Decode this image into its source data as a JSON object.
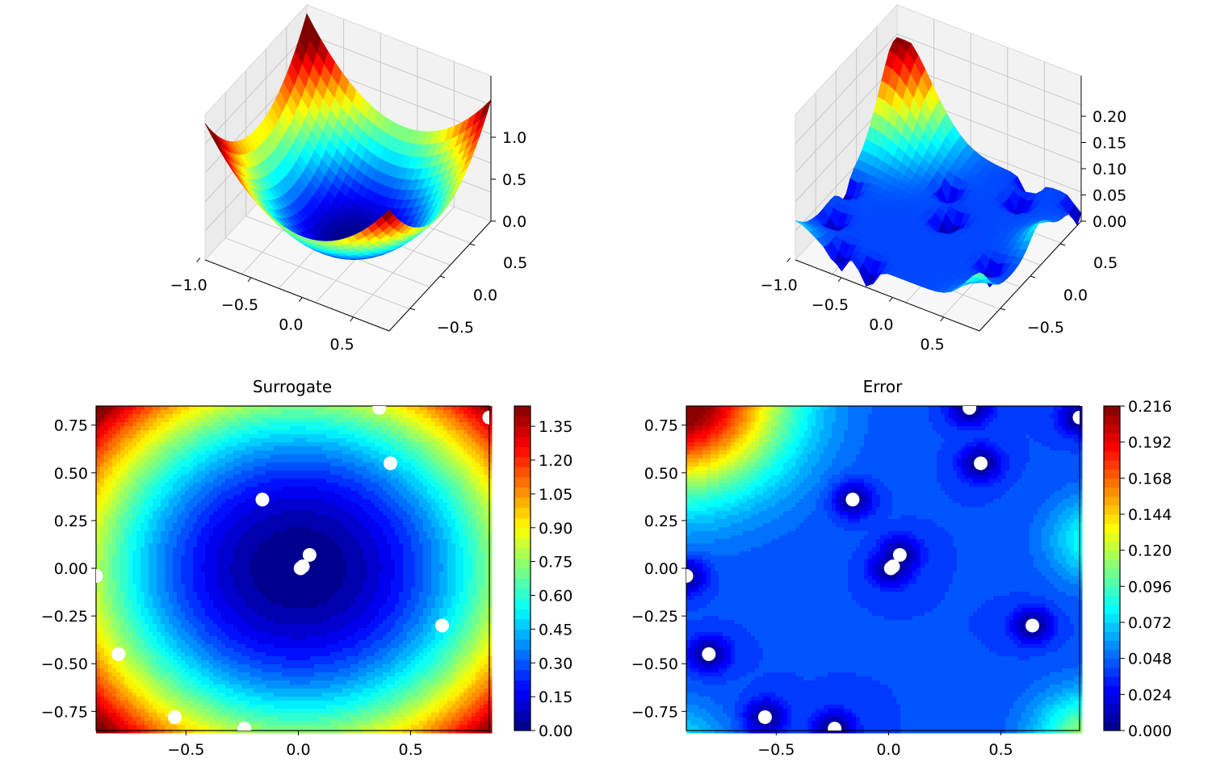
{
  "chart_data": [
    {
      "type": "surface3d",
      "title": "",
      "x_ticks": [
        "−1.0",
        "−0.5",
        "0.0",
        "0.5"
      ],
      "y_ticks": [
        "−0.5",
        "0.0",
        "0.5"
      ],
      "z_ticks": [
        "0.0",
        "0.5",
        "1.0"
      ],
      "xlim": [
        -1.0,
        0.85
      ],
      "ylim": [
        -0.85,
        0.85
      ],
      "zlim": [
        0.0,
        1.35
      ],
      "colormap": "jet",
      "surface": "z = x^2 + y^2 (bowl, max ≈ 1.4 at corners)"
    },
    {
      "type": "surface3d",
      "title": "",
      "x_ticks": [
        "−1.0",
        "−0.5",
        "0.0",
        "0.5"
      ],
      "y_ticks": [
        "−0.5",
        "0.0",
        "0.5"
      ],
      "z_ticks": [
        "0.00",
        "0.05",
        "0.10",
        "0.15",
        "0.20"
      ],
      "xlim": [
        -1.0,
        0.85
      ],
      "ylim": [
        -0.85,
        0.85
      ],
      "zlim": [
        0.0,
        0.216
      ],
      "colormap": "jet",
      "surface": "error surface, peak ≈ 0.21 at far corner"
    },
    {
      "type": "heatmap",
      "title": "Surrogate",
      "xlim": [
        -0.9,
        0.85
      ],
      "ylim": [
        -0.85,
        0.85
      ],
      "x_ticks": [
        "−0.5",
        "0.0",
        "0.5"
      ],
      "y_ticks": [
        "−0.75",
        "−0.50",
        "−0.25",
        "0.00",
        "0.25",
        "0.50",
        "0.75"
      ],
      "colorbar_ticks": [
        "0.00",
        "0.15",
        "0.30",
        "0.45",
        "0.60",
        "0.75",
        "0.90",
        "1.05",
        "1.20",
        "1.35"
      ],
      "colorbar_range": [
        0.0,
        1.44
      ],
      "colormap": "jet",
      "levels": 32,
      "samples": [
        [
          0.36,
          0.84
        ],
        [
          0.85,
          0.79
        ],
        [
          0.41,
          0.55
        ],
        [
          -0.16,
          0.36
        ],
        [
          0.05,
          0.07
        ],
        [
          0.02,
          0.01
        ],
        [
          0.01,
          0.0
        ],
        [
          -0.9,
          -0.04
        ],
        [
          0.64,
          -0.3
        ],
        [
          -0.8,
          -0.45
        ],
        [
          -0.55,
          -0.78
        ],
        [
          -0.24,
          -0.84
        ]
      ]
    },
    {
      "type": "heatmap",
      "title": "Error",
      "xlim": [
        -0.9,
        0.85
      ],
      "ylim": [
        -0.85,
        0.85
      ],
      "x_ticks": [
        "−0.5",
        "0.0",
        "0.5"
      ],
      "y_ticks": [
        "−0.75",
        "−0.50",
        "−0.25",
        "0.00",
        "0.25",
        "0.50",
        "0.75"
      ],
      "colorbar_ticks": [
        "0.000",
        "0.024",
        "0.048",
        "0.072",
        "0.096",
        "0.120",
        "0.144",
        "0.168",
        "0.192",
        "0.216"
      ],
      "colorbar_range": [
        0.0,
        0.216
      ],
      "colormap": "jet",
      "levels": 36,
      "samples": [
        [
          0.36,
          0.84
        ],
        [
          0.85,
          0.79
        ],
        [
          0.41,
          0.55
        ],
        [
          -0.16,
          0.36
        ],
        [
          0.05,
          0.07
        ],
        [
          0.02,
          0.01
        ],
        [
          0.01,
          0.0
        ],
        [
          -0.9,
          -0.04
        ],
        [
          0.64,
          -0.3
        ],
        [
          -0.8,
          -0.45
        ],
        [
          -0.55,
          -0.78
        ],
        [
          -0.24,
          -0.84
        ]
      ]
    }
  ]
}
